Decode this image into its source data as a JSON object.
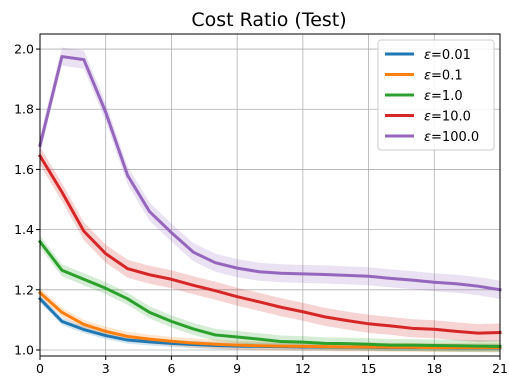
{
  "chart_data": {
    "type": "line",
    "title": "Cost Ratio (Test)",
    "xlabel": "",
    "ylabel": "",
    "xlim": [
      0,
      21
    ],
    "ylim": [
      0.98,
      2.05
    ],
    "x_ticks": [
      "0",
      "3",
      "6",
      "9",
      "12",
      "15",
      "18",
      "21"
    ],
    "y_ticks": [
      "1.0",
      "1.2",
      "1.4",
      "1.6",
      "1.8",
      "2.0"
    ],
    "grid": true,
    "legend_position": "top-right",
    "legend_prefix": "ε=",
    "x": [
      0,
      1,
      2,
      3,
      4,
      5,
      6,
      7,
      8,
      9,
      10,
      11,
      12,
      13,
      14,
      15,
      16,
      17,
      18,
      19,
      20,
      21
    ],
    "series": [
      {
        "name": "0.01",
        "color": "#1f77b4",
        "values": [
          1.17,
          1.095,
          1.068,
          1.048,
          1.033,
          1.027,
          1.022,
          1.018,
          1.015,
          1.013,
          1.012,
          1.011,
          1.01,
          1.01,
          1.009,
          1.009,
          1.008,
          1.008,
          1.008,
          1.007,
          1.007,
          1.007
        ],
        "band": 0.012
      },
      {
        "name": "0.1",
        "color": "#ff7f0e",
        "values": [
          1.19,
          1.125,
          1.085,
          1.062,
          1.045,
          1.036,
          1.029,
          1.023,
          1.019,
          1.016,
          1.014,
          1.013,
          1.012,
          1.011,
          1.01,
          1.01,
          1.009,
          1.009,
          1.008,
          1.008,
          1.008,
          1.008
        ],
        "band": 0.015
      },
      {
        "name": "1.0",
        "color": "#2ca02c",
        "values": [
          1.36,
          1.265,
          1.235,
          1.205,
          1.17,
          1.125,
          1.095,
          1.07,
          1.05,
          1.043,
          1.036,
          1.028,
          1.026,
          1.022,
          1.021,
          1.019,
          1.016,
          1.016,
          1.015,
          1.014,
          1.013,
          1.012
        ],
        "band": 0.02
      },
      {
        "name": "10.0",
        "color": "#d62728",
        "values": [
          1.645,
          1.525,
          1.395,
          1.32,
          1.27,
          1.25,
          1.235,
          1.215,
          1.197,
          1.177,
          1.16,
          1.142,
          1.127,
          1.11,
          1.098,
          1.087,
          1.08,
          1.072,
          1.069,
          1.062,
          1.056,
          1.058
        ],
        "band": 0.03
      },
      {
        "name": "100.0",
        "color": "#9467bd",
        "values": [
          1.68,
          1.975,
          1.965,
          1.79,
          1.58,
          1.46,
          1.39,
          1.325,
          1.29,
          1.272,
          1.26,
          1.255,
          1.253,
          1.251,
          1.248,
          1.245,
          1.238,
          1.232,
          1.225,
          1.22,
          1.212,
          1.2
        ],
        "band": 0.03
      }
    ]
  }
}
